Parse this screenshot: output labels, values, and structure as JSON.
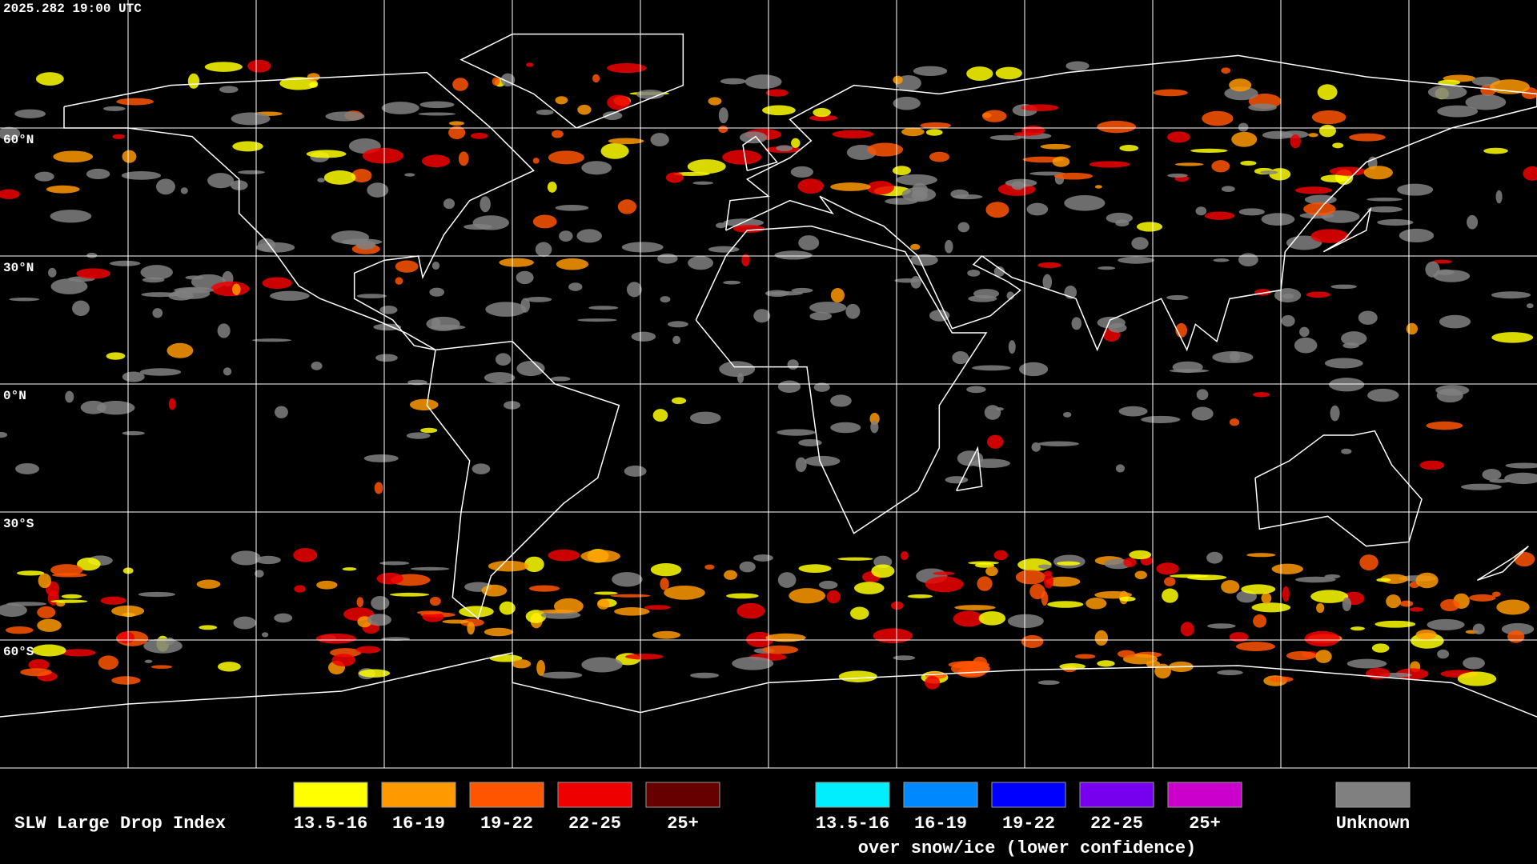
{
  "header": {
    "timestamp": "2025.282 19:00 UTC"
  },
  "latitude_labels": [
    "60°N",
    "30°N",
    "0°N",
    "30°S",
    "60°S"
  ],
  "legend": {
    "title": "SLW Large Drop Index",
    "groups": [
      {
        "items": [
          {
            "label": "13.5-16",
            "color": "#ffff00"
          },
          {
            "label": "16-19",
            "color": "#ff9900"
          },
          {
            "label": "19-22",
            "color": "#ff5500"
          },
          {
            "label": "22-25",
            "color": "#ee0000"
          },
          {
            "label": "25+",
            "color": "#660000"
          }
        ]
      },
      {
        "caption": "over snow/ice (lower confidence)",
        "items": [
          {
            "label": "13.5-16",
            "color": "#00eeff"
          },
          {
            "label": "16-19",
            "color": "#0088ff"
          },
          {
            "label": "19-22",
            "color": "#0000ff"
          },
          {
            "label": "22-25",
            "color": "#7700ee"
          },
          {
            "label": "25+",
            "color": "#cc00cc"
          }
        ]
      },
      {
        "items": [
          {
            "label": "Unknown",
            "color": "#808080"
          }
        ]
      }
    ]
  }
}
